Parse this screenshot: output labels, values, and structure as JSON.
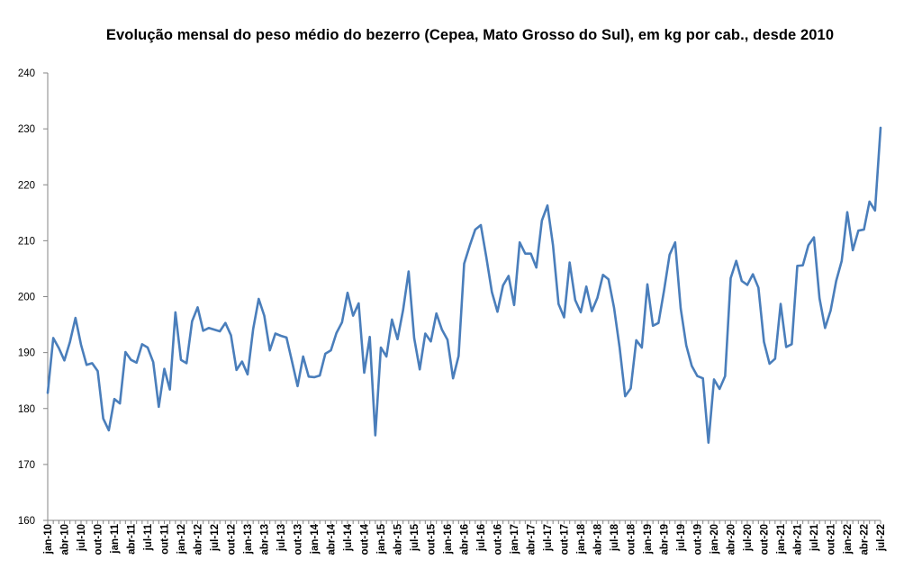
{
  "chart_data": {
    "type": "line",
    "title": "Evolução mensal do peso médio do bezerro (Cepea, Mato Grosso do Sul), em kg por cab., desde 2010",
    "xlabel": "",
    "ylabel": "",
    "ylim": [
      160,
      240
    ],
    "yticks": [
      "160",
      "170",
      "180",
      "190",
      "200",
      "210",
      "220",
      "230",
      "240"
    ],
    "grid": false,
    "line_color": "#4A7EBB",
    "x_tick_labels": [
      "jan-10",
      "abr-10",
      "jul-10",
      "out-10",
      "jan-11",
      "abr-11",
      "jul-11",
      "out-11",
      "jan-12",
      "abr-12",
      "jul-12",
      "out-12",
      "jan-13",
      "abr-13",
      "jul-13",
      "out-13",
      "jan-14",
      "abr-14",
      "jul-14",
      "out-14",
      "jan-15",
      "abr-15",
      "jul-15",
      "out-15",
      "jan-16",
      "abr-16",
      "jul-16",
      "out-16",
      "jan-17",
      "abr-17",
      "jul-17",
      "out-17",
      "jan-18",
      "abr-18",
      "jul-18",
      "out-18",
      "jan-19",
      "abr-19",
      "jul-19",
      "out-19",
      "jan-20",
      "abr-20",
      "jul-20",
      "out-20",
      "jan-21",
      "abr-21",
      "jul-21",
      "out-21",
      "jan-22",
      "abr-22",
      "jul-22"
    ],
    "x_first": "jan-10",
    "x_last": "jul-22",
    "values": [
      182.8,
      192.6,
      190.8,
      188.6,
      191.9,
      196.2,
      191.4,
      187.8,
      188.1,
      186.7,
      178.2,
      176.1,
      181.7,
      180.9,
      190.1,
      188.7,
      188.2,
      191.5,
      190.9,
      188.3,
      180.3,
      187.1,
      183.4,
      197.2,
      188.7,
      188.1,
      195.6,
      198.1,
      193.9,
      194.4,
      194.1,
      193.8,
      195.3,
      193.1,
      186.9,
      188.4,
      186.1,
      194.2,
      199.6,
      196.6,
      190.4,
      193.4,
      193.0,
      192.7,
      188.4,
      184.0,
      189.3,
      185.7,
      185.6,
      185.9,
      189.8,
      190.4,
      193.5,
      195.4,
      200.7,
      196.6,
      198.8,
      186.4,
      192.8,
      175.2,
      190.9,
      189.3,
      195.9,
      192.4,
      197.6,
      204.5,
      192.6,
      187.0,
      193.4,
      192.0,
      197.0,
      194.1,
      192.3,
      185.4,
      189.4,
      205.9,
      209.1,
      212.0,
      212.8,
      207.0,
      200.8,
      197.3,
      202.0,
      203.7,
      198.5,
      209.7,
      207.7,
      207.7,
      205.2,
      213.6,
      216.3,
      209.2,
      198.7,
      196.3,
      206.1,
      199.4,
      197.2,
      201.8,
      197.4,
      199.8,
      203.9,
      203.1,
      198.0,
      190.9,
      182.2,
      183.6,
      192.2,
      190.9,
      202.2,
      194.8,
      195.3,
      201.1,
      207.5,
      209.7,
      197.9,
      191.3,
      187.6,
      185.8,
      185.4,
      173.9,
      185.2,
      183.5,
      185.8,
      203.3,
      206.4,
      202.8,
      202.1,
      204.0,
      201.6,
      191.9,
      188.0,
      188.9,
      198.7,
      191.0,
      191.5,
      205.5,
      205.6,
      209.2,
      210.6,
      199.7,
      194.4,
      197.5,
      202.8,
      206.4,
      215.1,
      208.3,
      211.8,
      212.0,
      217.0,
      215.4,
      230.2
    ]
  }
}
